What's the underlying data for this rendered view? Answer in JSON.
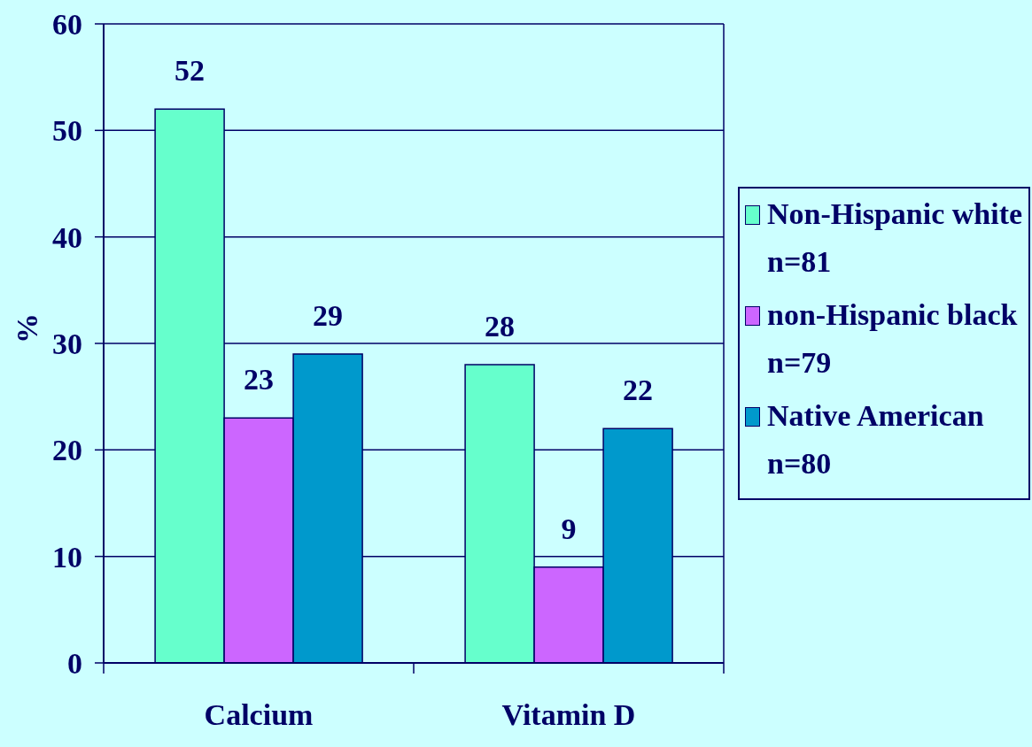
{
  "chart_data": {
    "type": "bar",
    "ylabel": "%",
    "categories": [
      "Calcium",
      "Vitamin D"
    ],
    "series": [
      {
        "name": "Non-Hispanic white n=81",
        "color": "#66ffcc",
        "values": [
          52,
          28
        ]
      },
      {
        "name": "non-Hispanic black n=79",
        "color": "#cc66ff",
        "values": [
          23,
          9
        ]
      },
      {
        "name": "Native American n=80",
        "color": "#0099cc",
        "values": [
          29,
          22
        ]
      }
    ],
    "ylim": [
      0,
      60
    ],
    "yticks": [
      0,
      10,
      20,
      30,
      40,
      50,
      60
    ],
    "grid": "y",
    "legend": "right",
    "data_labels": true
  }
}
